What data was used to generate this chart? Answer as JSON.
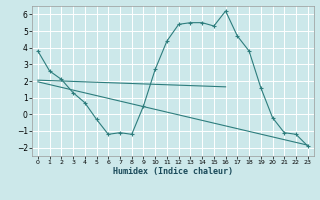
{
  "xlabel": "Humidex (Indice chaleur)",
  "bg_color": "#cce8ea",
  "grid_color": "#ffffff",
  "line_color": "#2d7d7d",
  "xlim": [
    -0.5,
    23.5
  ],
  "ylim": [
    -2.5,
    6.5
  ],
  "yticks": [
    -2,
    -1,
    0,
    1,
    2,
    3,
    4,
    5,
    6
  ],
  "xticks": [
    0,
    1,
    2,
    3,
    4,
    5,
    6,
    7,
    8,
    9,
    10,
    11,
    12,
    13,
    14,
    15,
    16,
    17,
    18,
    19,
    20,
    21,
    22,
    23
  ],
  "curve1_x": [
    0,
    1,
    2,
    3,
    4,
    5,
    6,
    7,
    8,
    9,
    10,
    11,
    12,
    13,
    14,
    15,
    16,
    17,
    18,
    19,
    20,
    21,
    22,
    23
  ],
  "curve1_y": [
    3.8,
    2.6,
    2.1,
    1.3,
    0.7,
    -0.3,
    -1.2,
    -1.1,
    -1.2,
    0.5,
    2.7,
    4.4,
    5.4,
    5.5,
    5.5,
    5.3,
    6.2,
    4.7,
    3.8,
    1.6,
    -0.2,
    -1.1,
    -1.2,
    -1.9
  ],
  "line2_x": [
    0,
    2,
    16
  ],
  "line2_y": [
    2.05,
    2.0,
    1.65
  ],
  "line3_x": [
    0,
    23
  ],
  "line3_y": [
    1.95,
    -1.85
  ]
}
